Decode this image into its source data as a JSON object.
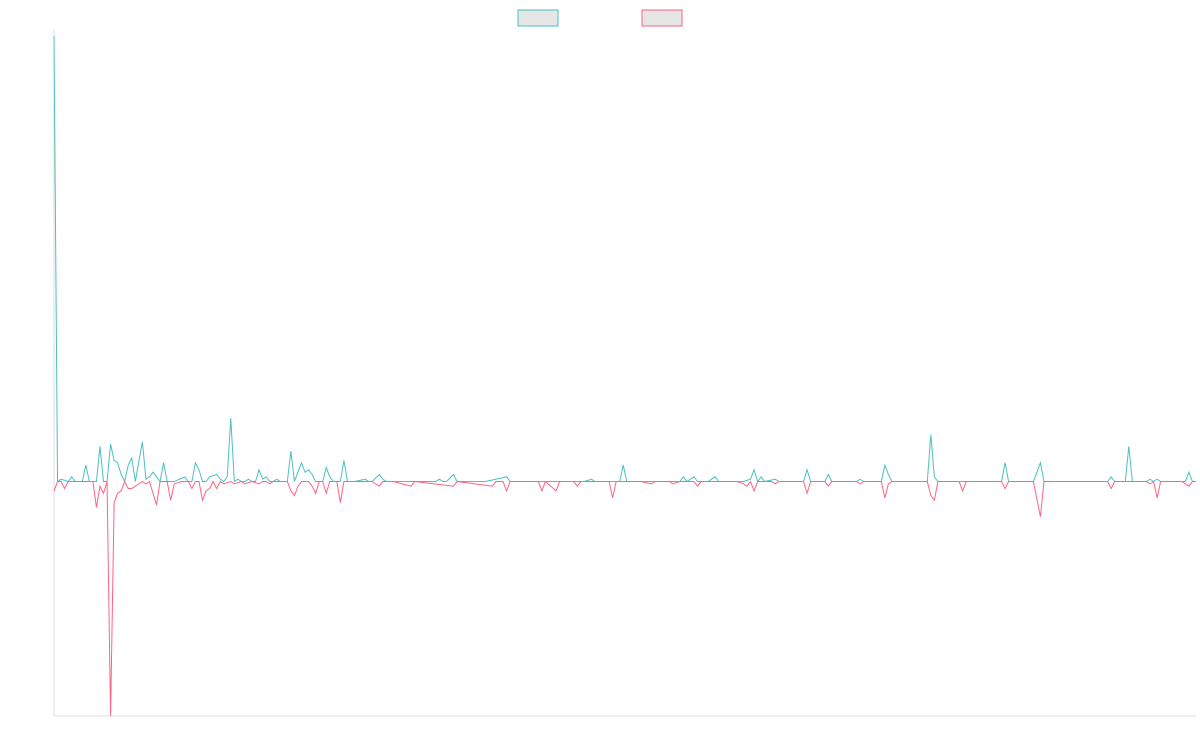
{
  "chart_data": {
    "type": "line",
    "title": "",
    "xlabel": "",
    "ylabel": "",
    "ylim": [
      -100,
      190
    ],
    "x_count": 324,
    "grid": false,
    "legend_placement": "top-center",
    "baseline": 0,
    "series": [
      {
        "color": "#4bc0c0",
        "fill": "#e6e6e6",
        "points": [
          [
            0,
            190
          ],
          [
            1,
            0
          ],
          [
            2,
            1
          ],
          [
            4,
            0
          ],
          [
            5,
            2
          ],
          [
            6,
            0
          ],
          [
            8,
            0
          ],
          [
            9,
            7
          ],
          [
            10,
            0
          ],
          [
            12,
            0
          ],
          [
            13,
            15
          ],
          [
            14,
            0
          ],
          [
            15,
            0
          ],
          [
            16,
            16
          ],
          [
            17,
            9
          ],
          [
            18,
            8
          ],
          [
            19,
            3
          ],
          [
            20,
            0
          ],
          [
            21,
            7
          ],
          [
            22,
            10
          ],
          [
            23,
            0
          ],
          [
            25,
            17
          ],
          [
            26,
            1
          ],
          [
            27,
            2
          ],
          [
            28,
            4
          ],
          [
            29,
            2
          ],
          [
            30,
            0
          ],
          [
            31,
            8
          ],
          [
            32,
            0
          ],
          [
            34,
            0
          ],
          [
            37,
            2
          ],
          [
            38,
            0
          ],
          [
            39,
            0
          ],
          [
            40,
            8
          ],
          [
            41,
            5
          ],
          [
            42,
            0
          ],
          [
            43,
            0
          ],
          [
            44,
            2
          ],
          [
            46,
            3
          ],
          [
            47,
            1
          ],
          [
            48,
            0
          ],
          [
            49,
            2
          ],
          [
            50,
            27
          ],
          [
            51,
            0
          ],
          [
            52,
            1
          ],
          [
            53,
            0
          ],
          [
            54,
            0
          ],
          [
            55,
            1
          ],
          [
            56,
            0
          ],
          [
            57,
            0
          ],
          [
            58,
            5
          ],
          [
            59,
            1
          ],
          [
            60,
            2
          ],
          [
            61,
            0
          ],
          [
            62,
            0
          ],
          [
            63,
            1
          ],
          [
            64,
            0
          ],
          [
            66,
            0
          ],
          [
            67,
            13
          ],
          [
            68,
            0
          ],
          [
            69,
            4
          ],
          [
            70,
            8
          ],
          [
            71,
            4
          ],
          [
            72,
            5
          ],
          [
            73,
            3
          ],
          [
            74,
            0
          ],
          [
            75,
            0
          ],
          [
            76,
            0
          ],
          [
            77,
            6
          ],
          [
            78,
            2
          ],
          [
            79,
            0
          ],
          [
            81,
            0
          ],
          [
            82,
            9
          ],
          [
            83,
            0
          ],
          [
            85,
            0
          ],
          [
            88,
            1
          ],
          [
            89,
            0
          ],
          [
            90,
            0
          ],
          [
            92,
            3
          ],
          [
            93,
            1
          ],
          [
            94,
            0
          ],
          [
            96,
            0
          ],
          [
            97,
            0
          ],
          [
            99,
            0
          ],
          [
            102,
            0
          ],
          [
            108,
            0
          ],
          [
            109,
            1
          ],
          [
            110,
            0
          ],
          [
            111,
            0
          ],
          [
            113,
            3
          ],
          [
            114,
            0
          ],
          [
            116,
            0
          ],
          [
            117,
            0
          ],
          [
            118,
            0
          ],
          [
            120,
            0
          ],
          [
            122,
            0
          ],
          [
            128,
            2
          ],
          [
            129,
            0
          ],
          [
            133,
            0
          ],
          [
            136,
            0
          ],
          [
            139,
            0
          ],
          [
            142,
            0
          ],
          [
            147,
            0
          ],
          [
            149,
            0
          ],
          [
            150,
            0
          ],
          [
            152,
            1
          ],
          [
            153,
            0
          ],
          [
            157,
            0
          ],
          [
            159,
            0
          ],
          [
            160,
            0
          ],
          [
            161,
            7
          ],
          [
            162,
            0
          ],
          [
            169,
            0
          ],
          [
            172,
            0
          ],
          [
            177,
            0
          ],
          [
            178,
            2
          ],
          [
            179,
            0
          ],
          [
            181,
            2
          ],
          [
            182,
            0
          ],
          [
            185,
            0
          ],
          [
            187,
            2
          ],
          [
            188,
            0
          ],
          [
            190,
            0
          ],
          [
            193,
            0
          ],
          [
            195,
            0
          ],
          [
            197,
            1
          ],
          [
            198,
            5
          ],
          [
            199,
            0
          ],
          [
            200,
            2
          ],
          [
            201,
            0
          ],
          [
            204,
            1
          ],
          [
            205,
            0
          ],
          [
            212,
            0
          ],
          [
            213,
            5
          ],
          [
            214,
            0
          ],
          [
            218,
            0
          ],
          [
            219,
            3
          ],
          [
            220,
            0
          ],
          [
            224,
            0
          ],
          [
            227,
            0
          ],
          [
            228,
            1
          ],
          [
            229,
            0
          ],
          [
            234,
            0
          ],
          [
            235,
            7
          ],
          [
            236,
            3
          ],
          [
            237,
            0
          ],
          [
            247,
            0
          ],
          [
            248,
            20
          ],
          [
            249,
            2
          ],
          [
            250,
            0
          ],
          [
            258,
            0
          ],
          [
            268,
            0
          ],
          [
            269,
            8
          ],
          [
            270,
            0
          ],
          [
            277,
            0
          ],
          [
            279,
            8
          ],
          [
            280,
            0
          ],
          [
            287,
            0
          ],
          [
            298,
            0
          ],
          [
            299,
            2
          ],
          [
            300,
            0
          ],
          [
            303,
            0
          ],
          [
            304,
            15
          ],
          [
            305,
            0
          ],
          [
            309,
            0
          ],
          [
            310,
            1
          ],
          [
            311,
            0
          ],
          [
            312,
            1
          ],
          [
            313,
            0
          ],
          [
            320,
            0
          ],
          [
            321,
            4
          ],
          [
            322,
            0
          ],
          [
            323,
            0
          ]
        ]
      },
      {
        "color": "#ff6384",
        "fill": "#e6e6e6",
        "points": [
          [
            0,
            -4
          ],
          [
            1,
            0
          ],
          [
            2,
            0
          ],
          [
            3,
            -3
          ],
          [
            4,
            0
          ],
          [
            9,
            0
          ],
          [
            11,
            0
          ],
          [
            12,
            -11
          ],
          [
            13,
            -2
          ],
          [
            14,
            -5
          ],
          [
            15,
            0
          ],
          [
            16,
            -100
          ],
          [
            17,
            -9
          ],
          [
            18,
            -5
          ],
          [
            19,
            -4
          ],
          [
            20,
            0
          ],
          [
            21,
            -3
          ],
          [
            22,
            -3
          ],
          [
            23,
            -2
          ],
          [
            25,
            0
          ],
          [
            26,
            -1
          ],
          [
            27,
            0
          ],
          [
            29,
            -10
          ],
          [
            30,
            0
          ],
          [
            32,
            0
          ],
          [
            33,
            -8
          ],
          [
            34,
            -1
          ],
          [
            36,
            0
          ],
          [
            38,
            0
          ],
          [
            39,
            -3
          ],
          [
            40,
            0
          ],
          [
            41,
            0
          ],
          [
            42,
            -8
          ],
          [
            43,
            -4
          ],
          [
            44,
            -3
          ],
          [
            45,
            0
          ],
          [
            46,
            -3
          ],
          [
            47,
            0
          ],
          [
            48,
            -1
          ],
          [
            50,
            0
          ],
          [
            51,
            -1
          ],
          [
            53,
            0
          ],
          [
            54,
            -1
          ],
          [
            56,
            0
          ],
          [
            58,
            -1
          ],
          [
            59,
            0
          ],
          [
            60,
            0
          ],
          [
            61,
            -1
          ],
          [
            62,
            0
          ],
          [
            66,
            0
          ],
          [
            67,
            -4
          ],
          [
            68,
            -6
          ],
          [
            69,
            -2
          ],
          [
            70,
            0
          ],
          [
            72,
            0
          ],
          [
            73,
            -2
          ],
          [
            74,
            -5
          ],
          [
            75,
            0
          ],
          [
            76,
            0
          ],
          [
            77,
            -5
          ],
          [
            78,
            0
          ],
          [
            80,
            0
          ],
          [
            81,
            -9
          ],
          [
            82,
            0
          ],
          [
            88,
            0
          ],
          [
            90,
            0
          ],
          [
            92,
            -2
          ],
          [
            93,
            0
          ],
          [
            96,
            0
          ],
          [
            101,
            -2
          ],
          [
            102,
            0
          ],
          [
            113,
            -2
          ],
          [
            114,
            0
          ],
          [
            124,
            -2
          ],
          [
            125,
            0
          ],
          [
            127,
            0
          ],
          [
            128,
            -4
          ],
          [
            129,
            0
          ],
          [
            131,
            0
          ],
          [
            133,
            0
          ],
          [
            137,
            0
          ],
          [
            138,
            -4
          ],
          [
            139,
            0
          ],
          [
            142,
            -4
          ],
          [
            143,
            0
          ],
          [
            147,
            0
          ],
          [
            148,
            -2
          ],
          [
            149,
            0
          ],
          [
            150,
            0
          ],
          [
            152,
            0
          ],
          [
            157,
            0
          ],
          [
            158,
            -7
          ],
          [
            159,
            0
          ],
          [
            166,
            0
          ],
          [
            169,
            -1
          ],
          [
            170,
            0
          ],
          [
            174,
            0
          ],
          [
            175,
            -1
          ],
          [
            177,
            0
          ],
          [
            181,
            0
          ],
          [
            182,
            -2
          ],
          [
            183,
            0
          ],
          [
            185,
            0
          ],
          [
            190,
            0
          ],
          [
            193,
            0
          ],
          [
            195,
            -1
          ],
          [
            196,
            -2
          ],
          [
            197,
            0
          ],
          [
            198,
            -4
          ],
          [
            199,
            0
          ],
          [
            200,
            0
          ],
          [
            203,
            0
          ],
          [
            204,
            -1
          ],
          [
            205,
            0
          ],
          [
            212,
            0
          ],
          [
            213,
            -5
          ],
          [
            214,
            0
          ],
          [
            218,
            0
          ],
          [
            219,
            -2
          ],
          [
            220,
            0
          ],
          [
            224,
            0
          ],
          [
            227,
            0
          ],
          [
            228,
            -1
          ],
          [
            229,
            0
          ],
          [
            232,
            0
          ],
          [
            234,
            0
          ],
          [
            235,
            -7
          ],
          [
            236,
            -1
          ],
          [
            237,
            0
          ],
          [
            247,
            0
          ],
          [
            248,
            -6
          ],
          [
            249,
            -8
          ],
          [
            250,
            0
          ],
          [
            256,
            0
          ],
          [
            257,
            -4
          ],
          [
            258,
            0
          ],
          [
            266,
            0
          ],
          [
            268,
            0
          ],
          [
            269,
            -3
          ],
          [
            270,
            0
          ],
          [
            277,
            0
          ],
          [
            279,
            -15
          ],
          [
            280,
            0
          ],
          [
            287,
            0
          ],
          [
            298,
            0
          ],
          [
            299,
            -3
          ],
          [
            300,
            0
          ],
          [
            303,
            0
          ],
          [
            305,
            0
          ],
          [
            309,
            0
          ],
          [
            310,
            -1
          ],
          [
            311,
            0
          ],
          [
            312,
            -7
          ],
          [
            313,
            0
          ],
          [
            319,
            0
          ],
          [
            321,
            -2
          ],
          [
            322,
            0
          ],
          [
            323,
            0
          ]
        ]
      }
    ]
  }
}
